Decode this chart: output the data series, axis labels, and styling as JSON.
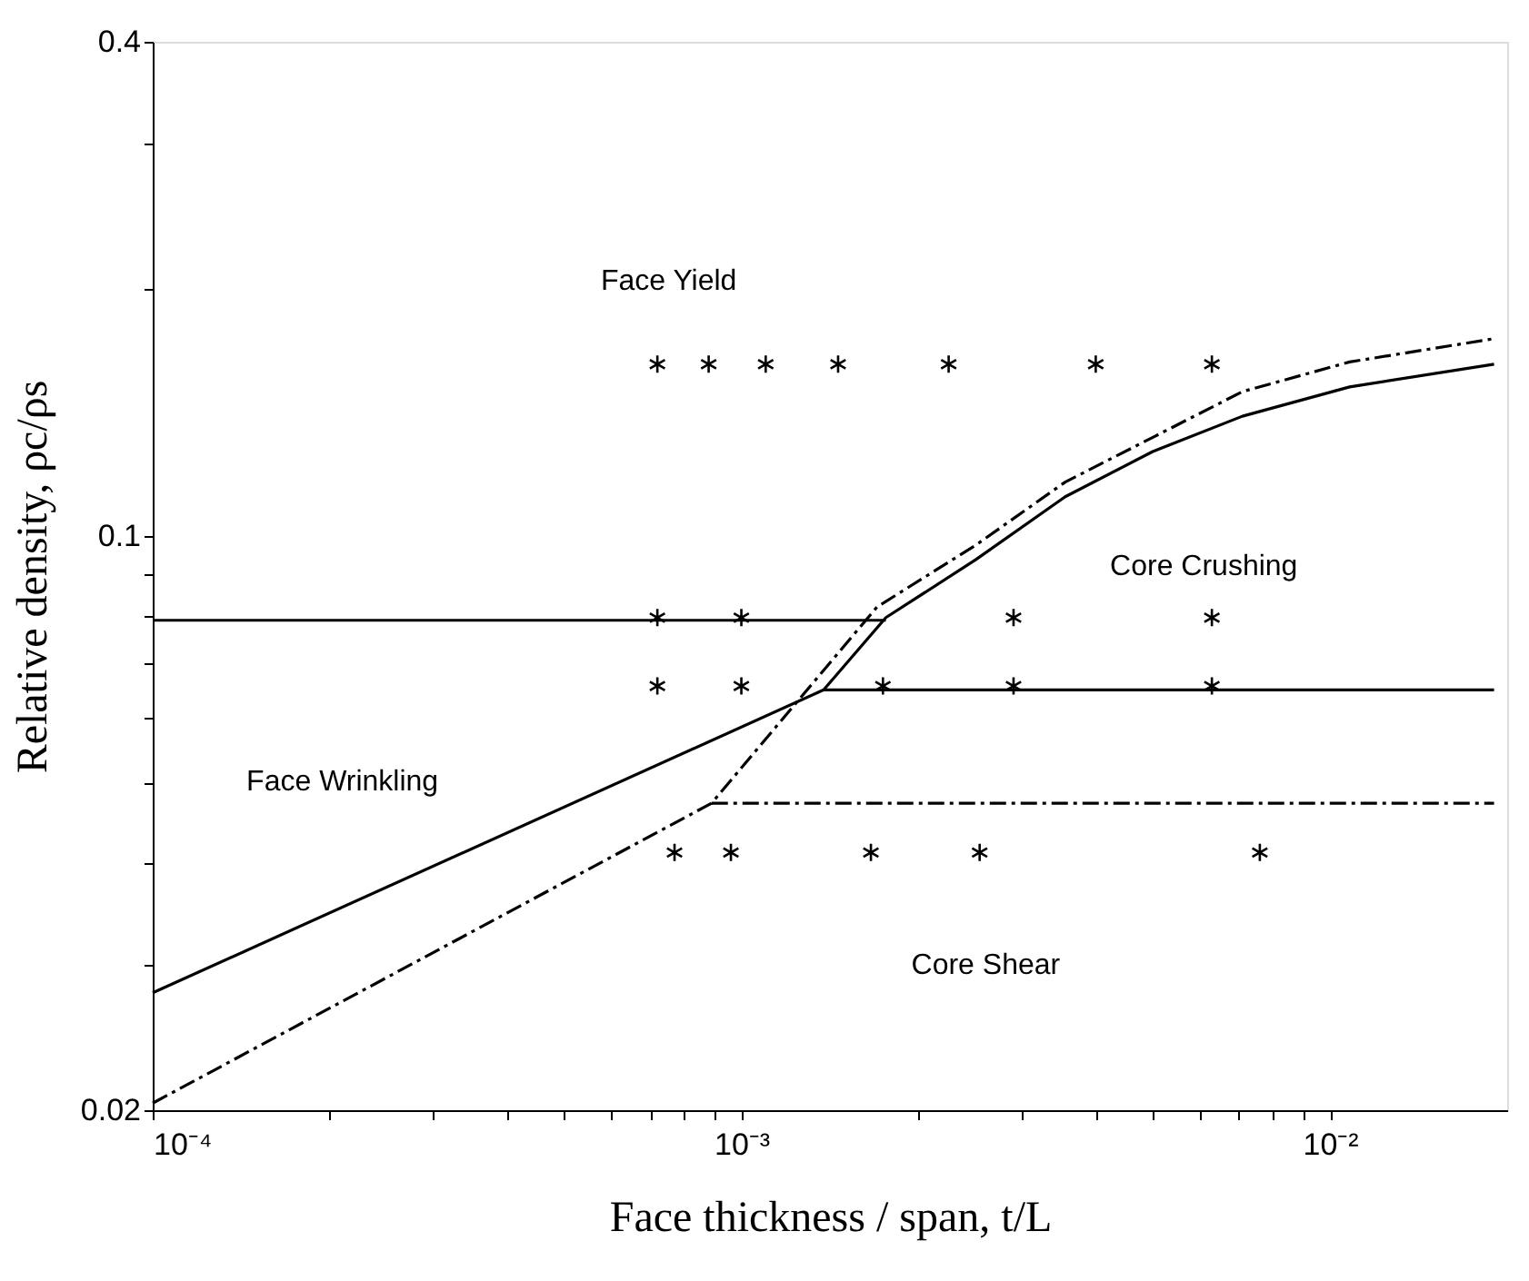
{
  "chart_data": {
    "type": "line",
    "xlabel": "Face thickness / span, t/L",
    "ylabel": "Relative density, ρc/ρs",
    "xlim": [
      0.0001,
      0.02
    ],
    "ylim": [
      0.02,
      0.4
    ],
    "log": "xy",
    "grid": false,
    "xticks": [
      {
        "value": 0.0001,
        "label": "10⁻⁴"
      },
      {
        "value": 0.0002,
        "label": null
      },
      {
        "value": 0.0003,
        "label": null
      },
      {
        "value": 0.0004,
        "label": null
      },
      {
        "value": 0.0005,
        "label": null
      },
      {
        "value": 0.0006,
        "label": null
      },
      {
        "value": 0.0007,
        "label": null
      },
      {
        "value": 0.0008,
        "label": null
      },
      {
        "value": 0.0009,
        "label": null
      },
      {
        "value": 0.001,
        "label": "10⁻³"
      },
      {
        "value": 0.002,
        "label": null
      },
      {
        "value": 0.003,
        "label": null
      },
      {
        "value": 0.004,
        "label": null
      },
      {
        "value": 0.005,
        "label": null
      },
      {
        "value": 0.006,
        "label": null
      },
      {
        "value": 0.007,
        "label": null
      },
      {
        "value": 0.008,
        "label": null
      },
      {
        "value": 0.009,
        "label": null
      },
      {
        "value": 0.01,
        "label": "10⁻²"
      }
    ],
    "yticks": [
      0.02,
      {
        "value": 0.03,
        "label": null
      },
      {
        "value": 0.04,
        "label": null
      },
      {
        "value": 0.05,
        "label": null
      },
      {
        "value": 0.06,
        "label": null
      },
      {
        "value": 0.07,
        "label": null
      },
      {
        "value": 0.08,
        "label": null
      },
      {
        "value": 0.09,
        "label": null
      },
      0.1,
      {
        "value": 0.2,
        "label": null
      },
      {
        "value": 0.3,
        "label": null
      },
      0.4
    ],
    "series": [
      {
        "line_style": "solid",
        "color": "#000000",
        "x": [
          0.0001,
          0.00138,
          0.00176,
          0.0025,
          0.00355,
          0.005,
          0.0071,
          0.0108,
          0.019
        ],
        "values": [
          0.0278,
          0.065,
          0.0796,
          0.0936,
          0.1117,
          0.1268,
          0.14,
          0.152,
          0.162
        ]
      },
      {
        "line_style": "solid",
        "color": "#000000",
        "x": [
          0.0001,
          0.00176
        ],
        "values": [
          0.079,
          0.079
        ]
      },
      {
        "line_style": "solid",
        "color": "#000000",
        "x": [
          0.00138,
          0.019
        ],
        "values": [
          0.065,
          0.065
        ]
      },
      {
        "line_style": "dashed",
        "color": "#000000",
        "x": [
          0.0001,
          0.00089,
          0.0017,
          0.0025,
          0.00355,
          0.0071,
          0.0108,
          0.019
        ],
        "values": [
          0.0204,
          0.0473,
          0.082,
          0.0975,
          0.1164,
          0.15,
          0.163,
          0.174
        ]
      },
      {
        "line_style": "dashed",
        "color": "#000000",
        "x": [
          0.00089,
          0.019
        ],
        "values": [
          0.0473,
          0.0473
        ]
      },
      {
        "type": "scatter",
        "marker": "cross",
        "color": "#000000",
        "x": [
          0.00072,
          0.00088,
          0.0011,
          0.00146,
          0.00225,
          0.004,
          0.0063,
          0.00072,
          0.001,
          0.0029,
          0.0063,
          0.00072,
          0.001,
          0.00174,
          0.0029,
          0.0063,
          0.00077,
          0.00096,
          0.00166,
          0.00254,
          0.0076
        ],
        "values": [
          0.162,
          0.162,
          0.162,
          0.162,
          0.162,
          0.162,
          0.162,
          0.0796,
          0.0796,
          0.0796,
          0.0796,
          0.0657,
          0.0657,
          0.0657,
          0.0657,
          0.0657,
          0.0412,
          0.0412,
          0.0412,
          0.0412,
          0.0412
        ]
      }
    ],
    "annotations": [
      "Face Yield",
      "Core Crushing",
      "Face Wrinkling",
      "Core Shear"
    ]
  }
}
